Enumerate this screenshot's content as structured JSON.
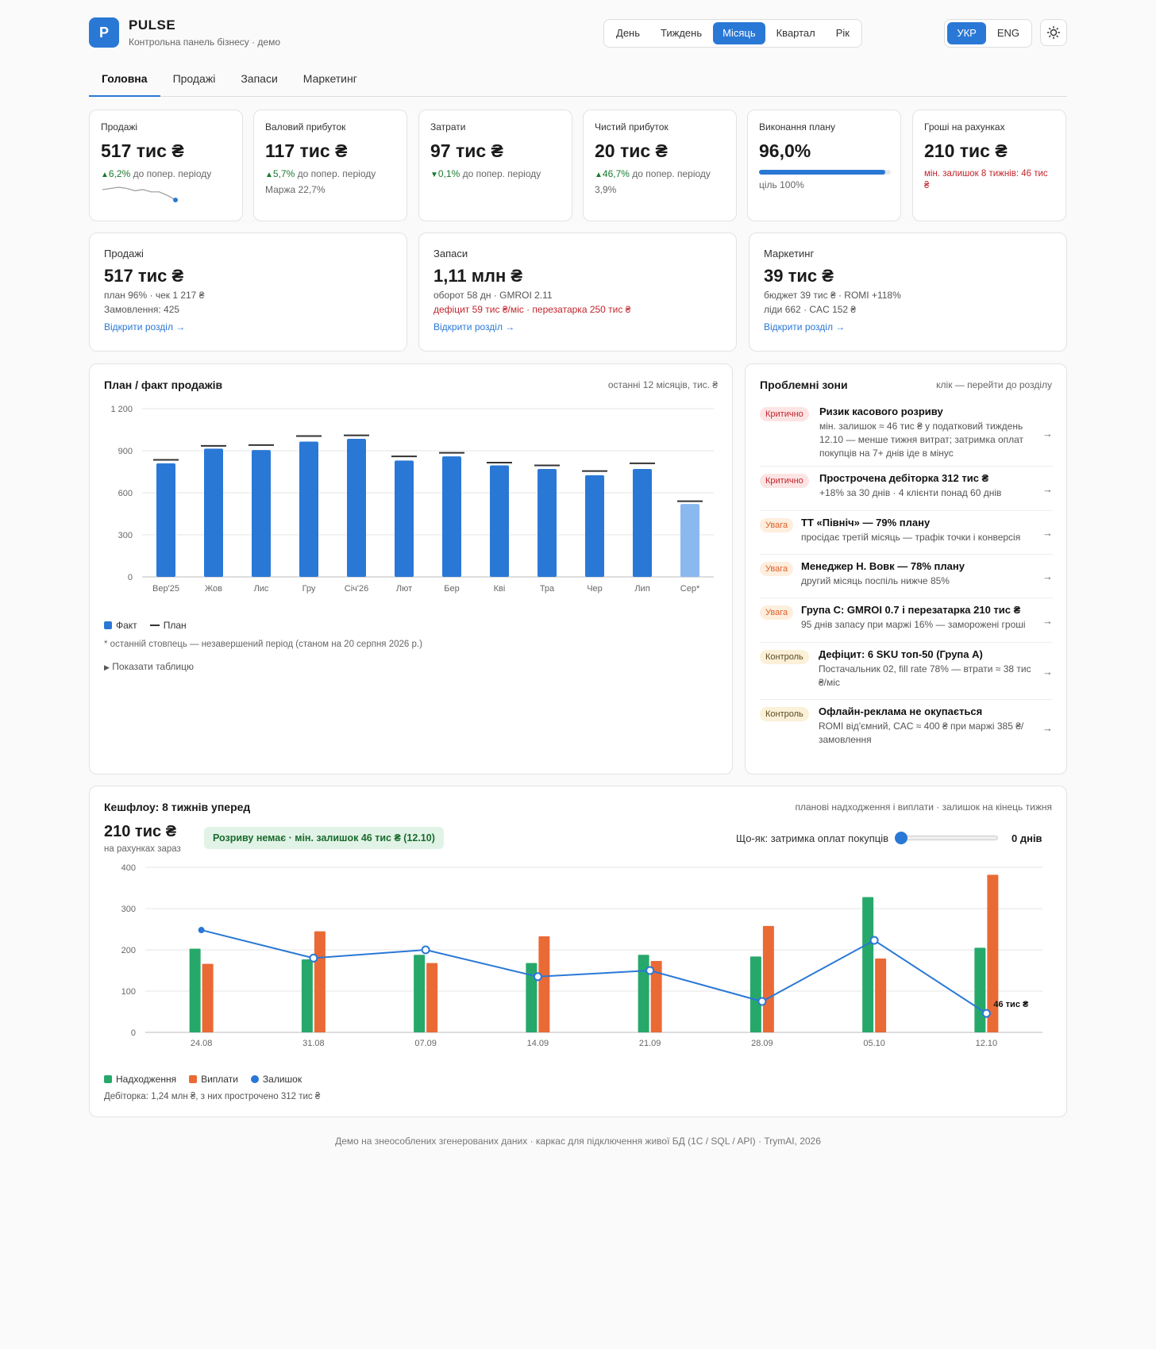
{
  "app": {
    "logo": "P",
    "name": "PULSE",
    "subtitle": "Контрольна панель бізнесу · демо"
  },
  "periods": [
    "День",
    "Тиждень",
    "Місяць",
    "Квартал",
    "Рік"
  ],
  "active_period": "Місяць",
  "langs": [
    "УКР",
    "ENG"
  ],
  "active_lang": "УКР",
  "theme_icon": "sun-icon",
  "tabs": [
    "Головна",
    "Продажі",
    "Запаси",
    "Маркетинг"
  ],
  "active_tab": "Головна",
  "kpis": [
    {
      "label": "Продажі",
      "value": "517 тис ₴",
      "delta": "6,2%",
      "direction": "up",
      "delta_suffix": "до попер. періоду",
      "extra": "",
      "sparkline": [
        10,
        11,
        12,
        11,
        9,
        10,
        8,
        8,
        5,
        1
      ]
    },
    {
      "label": "Валовий прибуток",
      "value": "117 тис ₴",
      "delta": "5,7%",
      "direction": "up",
      "delta_suffix": "до попер. періоду",
      "extra": "Маржа 22,7%"
    },
    {
      "label": "Затрати",
      "value": "97 тис ₴",
      "delta": "0,1%",
      "direction": "down",
      "delta_suffix": "до попер. періоду",
      "extra": ""
    },
    {
      "label": "Чистий прибуток",
      "value": "20 тис ₴",
      "delta": "46,7%",
      "direction": "up",
      "delta_suffix": "до попер. періоду",
      "extra": "3,9%"
    },
    {
      "label": "Виконання плану",
      "value": "96,0%",
      "progress": 0.96,
      "extra": "ціль 100%"
    },
    {
      "label": "Гроші на рахунках",
      "value": "210 тис ₴",
      "warning": "мін. залишок 8 тижнів: 46 тис ₴"
    }
  ],
  "sections": [
    {
      "label": "Продажі",
      "value": "517 тис ₴",
      "lines": [
        "план 96% · чек 1 217 ₴",
        "Замовлення: 425"
      ],
      "red_line": "",
      "link": "Відкрити розділ →"
    },
    {
      "label": "Запаси",
      "value": "1,11 млн ₴",
      "lines": [
        "оборот 58 дн · GMROI 2.11"
      ],
      "red_line": "дефіцит 59 тис ₴/міс · перезатарка 250 тис ₴",
      "link": "Відкрити розділ →"
    },
    {
      "label": "Маркетинг",
      "value": "39 тис ₴",
      "lines": [
        "бюджет 39 тис ₴ · ROMI +118%",
        "ліди 662 · CAC 152 ₴"
      ],
      "red_line": "",
      "link": "Відкрити розділ →"
    }
  ],
  "plan_fact": {
    "title": "План / факт продажів",
    "note": "останні 12 місяців, тис. ₴",
    "legend_fact": "Факт",
    "legend_plan": "План",
    "footnote": "* останній стовпець — незавершений період (станом на 20 серпня 2026 р.)",
    "show_table": "Показати таблицю",
    "colors": {
      "fact": "#2a78d6",
      "partial": "#8ab9ef",
      "plan": "#333333"
    }
  },
  "chart_data": [
    {
      "type": "bar",
      "title": "План / факт продажів",
      "categories": [
        "Вер'25",
        "Жов",
        "Лис",
        "Гру",
        "Січ'26",
        "Лют",
        "Бер",
        "Кві",
        "Тра",
        "Чер",
        "Лип",
        "Сер*"
      ],
      "series": [
        {
          "name": "Факт",
          "values": [
            810,
            915,
            905,
            965,
            985,
            830,
            860,
            795,
            770,
            725,
            770,
            520
          ]
        },
        {
          "name": "План",
          "values": [
            835,
            935,
            940,
            1005,
            1010,
            860,
            885,
            815,
            795,
            755,
            810,
            540
          ]
        }
      ],
      "yticks": [
        0,
        300,
        600,
        900,
        1200
      ],
      "ytick_labels": [
        "0",
        "300",
        "600",
        "900",
        "1 200"
      ],
      "ylim": [
        0,
        1200
      ],
      "grid": true,
      "legend": "bottom-left"
    },
    {
      "type": "bar",
      "title": "Кешфлоу: 8 тижнів уперед",
      "categories": [
        "24.08",
        "31.08",
        "07.09",
        "14.09",
        "21.09",
        "28.09",
        "05.10",
        "12.10"
      ],
      "series": [
        {
          "name": "Надходження",
          "values": [
            203,
            177,
            188,
            168,
            188,
            184,
            328,
            205
          ]
        },
        {
          "name": "Виплати",
          "values": [
            166,
            245,
            168,
            233,
            173,
            258,
            179,
            382
          ]
        },
        {
          "name": "Залишок",
          "type": "line",
          "values": [
            248,
            180,
            200,
            135,
            150,
            75,
            223,
            46
          ]
        }
      ],
      "yticks": [
        0,
        100,
        200,
        300,
        400
      ],
      "ylim": [
        0,
        400
      ],
      "grid": true,
      "legend": "bottom-left"
    }
  ],
  "problems": {
    "title": "Проблемні зони",
    "hint": "клік — перейти до розділу",
    "items": [
      {
        "badge": "Критично",
        "level": "crit",
        "title": "Ризик касового розриву",
        "desc": [
          "мін. залишок ≈ 46 тис ₴ у податковий тиждень",
          "12.10 — менше тижня витрат; затримка оплат",
          "покупців на 7+ днів іде в мінус"
        ]
      },
      {
        "badge": "Критично",
        "level": "crit",
        "title": "Прострочена дебіторка 312 тис ₴",
        "desc": [
          "+18% за 30 днів · 4 клієнти понад 60 днів"
        ]
      },
      {
        "badge": "Увага",
        "level": "warn",
        "title": "ТТ «Північ» — 79% плану",
        "desc": [
          "просідає третій місяць — трафік точки і конверсія"
        ]
      },
      {
        "badge": "Увага",
        "level": "warn",
        "title": "Менеджер Н. Вовк — 78% плану",
        "desc": [
          "другий місяць поспіль нижче 85%"
        ]
      },
      {
        "badge": "Увага",
        "level": "warn",
        "title": "Група C: GMROI 0.7 і перезатарка 210 тис ₴",
        "desc": [
          "95 днів запасу при маржі 16% — заморожені гроші"
        ]
      },
      {
        "badge": "Контроль",
        "level": "ctrl",
        "title": "Дефіцит: 6 SKU топ-50 (Група A)",
        "desc": [
          "Постачальник 02, fill rate 78% — втрати ≈ 38 тис",
          "₴/міс"
        ]
      },
      {
        "badge": "Контроль",
        "level": "ctrl",
        "title": "Офлайн-реклама не окупається",
        "desc": [
          "ROMI від'ємний, CAC ≈ 400 ₴ при маржі 385 ₴/",
          "замовлення"
        ]
      }
    ],
    "arrow": "→"
  },
  "cashflow": {
    "title": "Кешфлоу: 8 тижнів уперед",
    "note": "планові надходження і виплати · залишок на кінець тижня",
    "balance": "210 тис ₴",
    "balance_label": "на рахунках зараз",
    "status": "Розриву немає · мін. залишок 46 тис ₴ (12.10)",
    "whatif_label": "Що-як: затримка оплат покупців",
    "whatif_value": "0 днів",
    "whatif_fraction": 0,
    "end_label": "46 тис ₴",
    "legend": [
      "Надходження",
      "Виплати",
      "Залишок"
    ],
    "receivables": "Дебіторка: 1,24 млн ₴, з них прострочено 312 тис ₴",
    "colors": {
      "in": "#27a86b",
      "out": "#ea6a35",
      "balance": "#2a78d6"
    }
  },
  "footer": "Демо на знеособлених згенерованих даних · каркас для підключення живої БД (1С / SQL / API) · TrymAI, 2026"
}
